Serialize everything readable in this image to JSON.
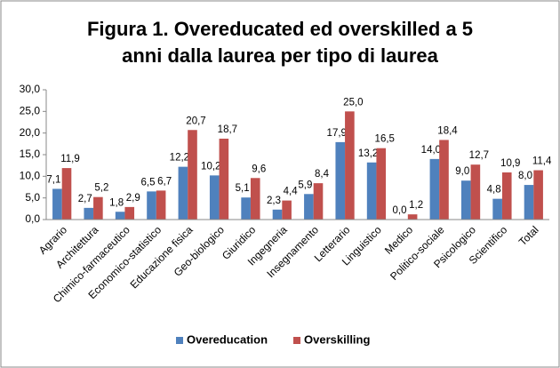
{
  "chart_data": {
    "type": "bar",
    "title": [
      "Figura 1. Overeducated ed overskilled a 5",
      "anni dalla laurea per tipo di laurea"
    ],
    "categories": [
      "Agrario",
      "Architettura",
      "Chimico-farmaceutico",
      "Economico-statistico",
      "Educazione fisica",
      "Geo-biologico",
      "Giuridico",
      "Ingegneria",
      "Insegnamento",
      "Letterario",
      "Linguistico",
      "Medico",
      "Politico-sociale",
      "Psicologico",
      "Scientifico",
      "Total"
    ],
    "series": [
      {
        "name": "Overeducation",
        "color": "#4f81bd",
        "values": [
          7.1,
          2.7,
          1.8,
          6.5,
          12.2,
          10.2,
          5.1,
          2.3,
          5.9,
          17.9,
          13.2,
          0.0,
          14.0,
          9.0,
          4.8,
          8.0
        ],
        "value_labels": [
          "7,1",
          "2,7",
          "1,8",
          "6,5",
          "12,2",
          "10,2",
          "5,1",
          "2,3",
          "5,9",
          "17,9",
          "13,2",
          "0,0",
          "14,0",
          "9,0",
          "4,8",
          "8,0"
        ]
      },
      {
        "name": "Overskilling",
        "color": "#c0504d",
        "values": [
          11.9,
          5.2,
          2.9,
          6.7,
          20.7,
          18.7,
          9.6,
          4.4,
          8.4,
          25.0,
          16.5,
          1.2,
          18.4,
          12.7,
          10.9,
          11.4
        ],
        "value_labels": [
          "11,9",
          "5,2",
          "2,9",
          "6,7",
          "20,7",
          "18,7",
          "9,6",
          "4,4",
          "8,4",
          "25,0",
          "16,5",
          "1,2",
          "18,4",
          "12,7",
          "10,9",
          "11,4"
        ]
      }
    ],
    "ylim": [
      0,
      30
    ],
    "yticks": [
      {
        "value": 0,
        "label": "0,0"
      },
      {
        "value": 5,
        "label": "5,0"
      },
      {
        "value": 10,
        "label": "10,0"
      },
      {
        "value": 15,
        "label": "15,0"
      },
      {
        "value": 20,
        "label": "20,0"
      },
      {
        "value": 25,
        "label": "25,0"
      },
      {
        "value": 30,
        "label": "30,0"
      }
    ],
    "legend": "bottom"
  }
}
